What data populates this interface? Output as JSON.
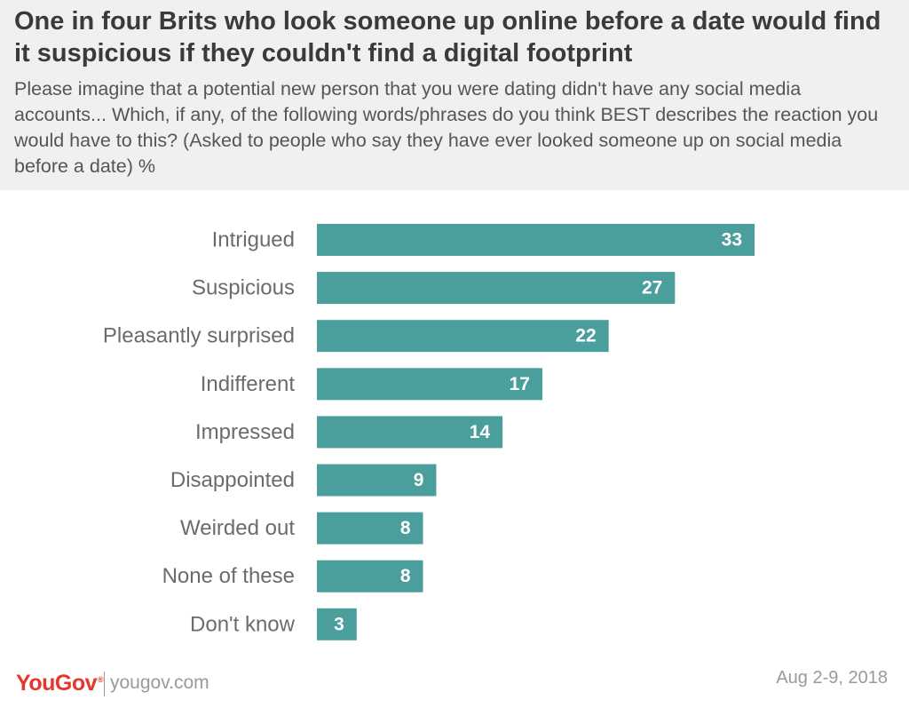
{
  "header": {
    "title": "One in four Brits who look someone up online before a date would find it suspicious if they couldn't find a digital footprint",
    "subtitle": "Please imagine that a potential new person that you were dating didn't have any social media accounts... Which, if any, of the following words/phrases do you think BEST describes the reaction you would have to this? (Asked to people who say they have ever looked someone up on social media before a date) %"
  },
  "chart_data": {
    "type": "bar",
    "orientation": "horizontal",
    "categories": [
      "Intrigued",
      "Suspicious",
      "Pleasantly surprised",
      "Indifferent",
      "Impressed",
      "Disappointed",
      "Weirded out",
      "None of these",
      "Don't know"
    ],
    "values": [
      33,
      27,
      22,
      17,
      14,
      9,
      8,
      8,
      3
    ],
    "title": "",
    "xlabel": "",
    "ylabel": "",
    "xlim": [
      0,
      33
    ],
    "grid": false,
    "legend": "none",
    "bar_color": "#4a9e9b",
    "value_label_color": "#ffffff"
  },
  "footer": {
    "logo_you": "You",
    "logo_gov": "Gov",
    "logo_reg": "®",
    "site": "yougov.com",
    "date": "Aug 2-9, 2018"
  },
  "colors": {
    "header_bg": "#f0f0f0",
    "title": "#3a3a3a",
    "bar": "#4a9e9b",
    "brand_red": "#e8362c",
    "muted_text": "#9a9a9a"
  }
}
